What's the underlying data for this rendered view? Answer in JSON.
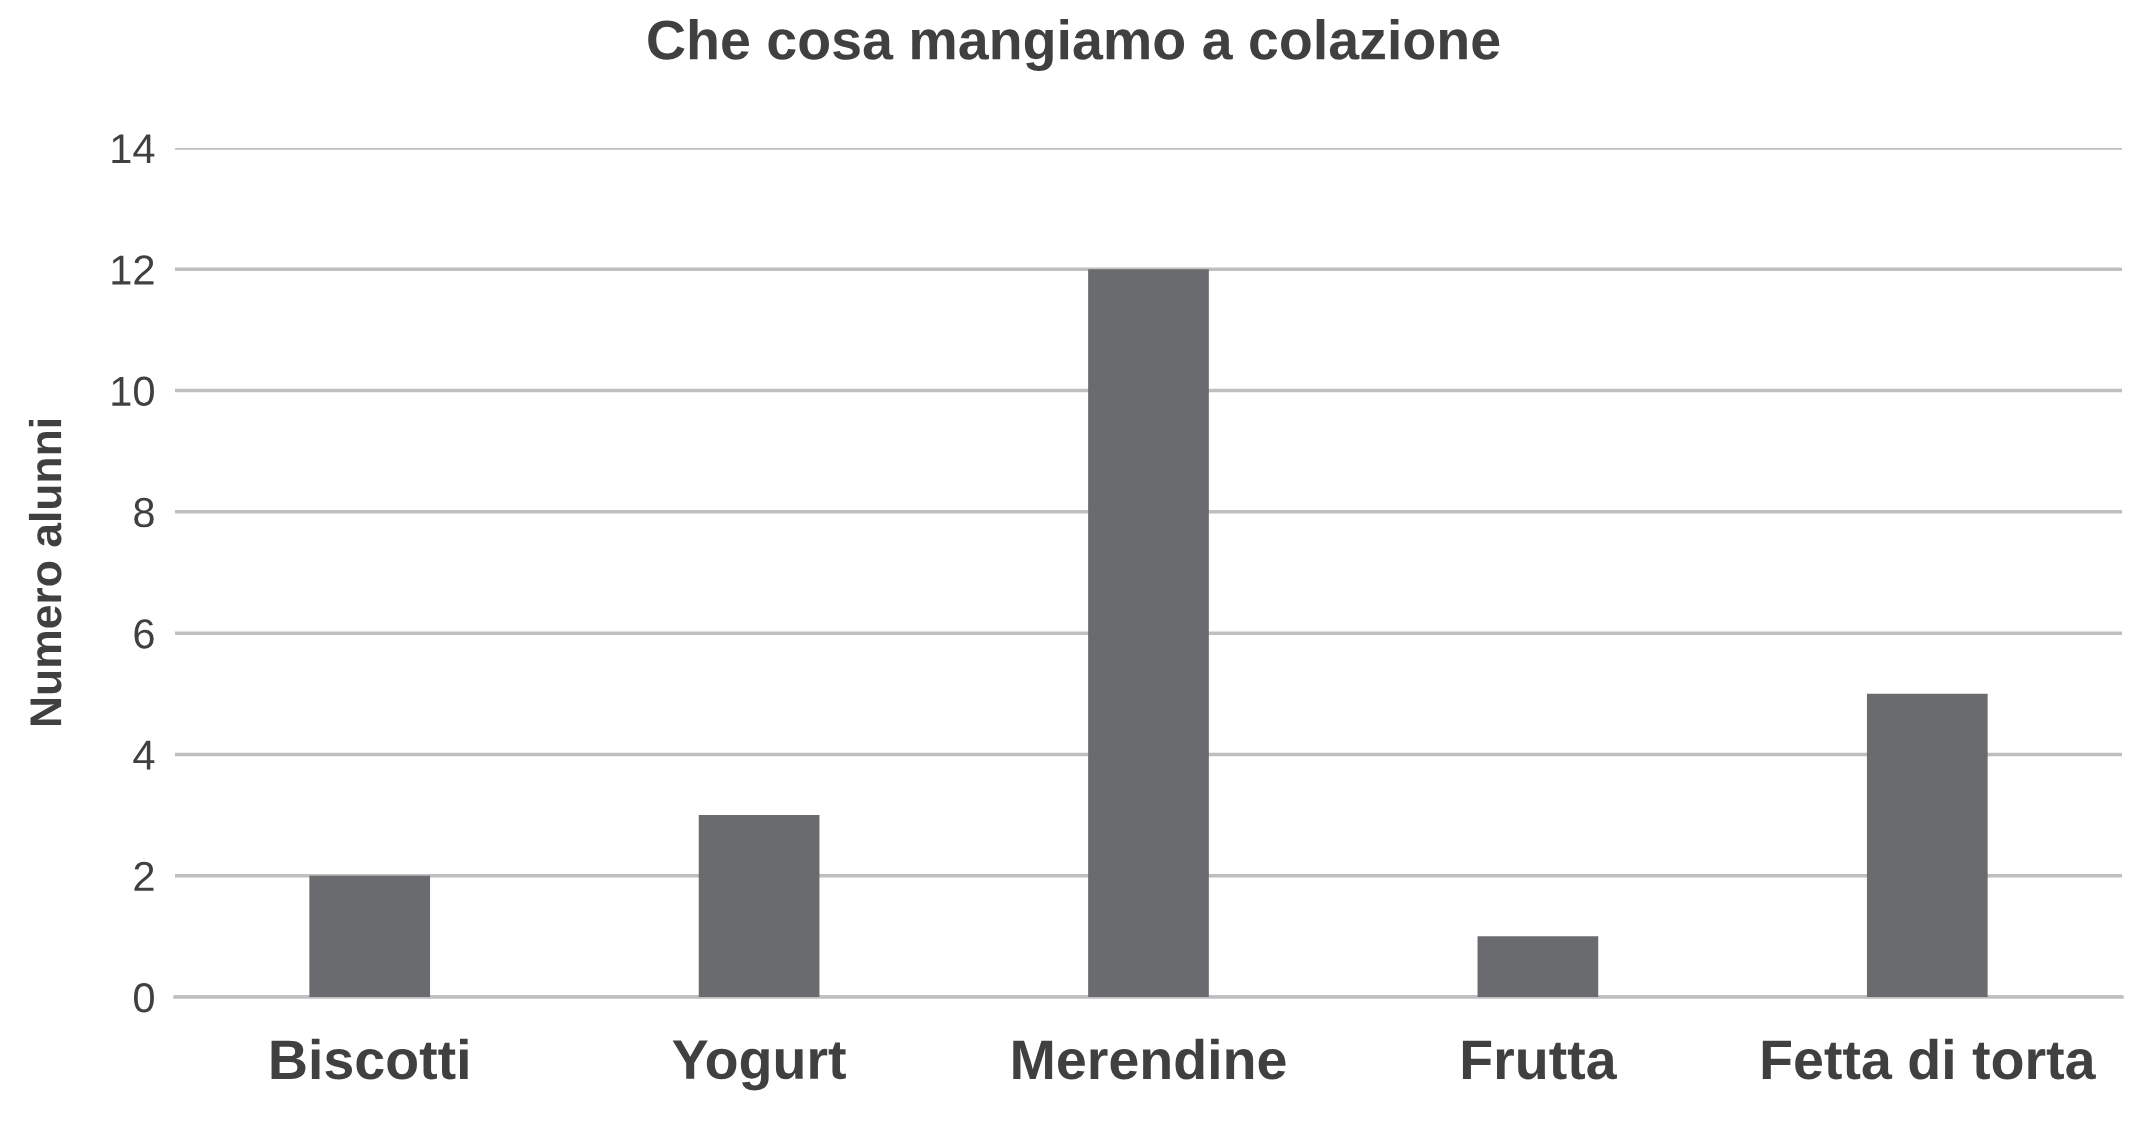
{
  "chart_data": {
    "type": "bar",
    "title": "Che cosa mangiamo a colazione",
    "ylabel": "Numero alunni",
    "categories": [
      "Biscotti",
      "Yogurt",
      "Merendine",
      "Frutta",
      "Fetta di torta"
    ],
    "values": [
      2,
      3,
      12,
      1,
      5
    ],
    "color": "#6a6b6e",
    "ylim": [
      0,
      14
    ],
    "yticks": [
      0,
      2,
      4,
      6,
      8,
      10,
      12,
      14
    ],
    "grid": "y"
  }
}
